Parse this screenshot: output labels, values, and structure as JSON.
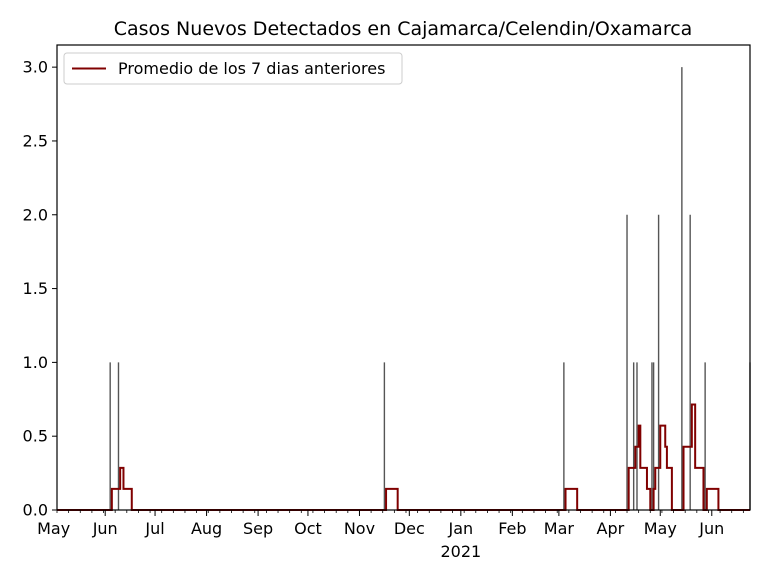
{
  "chart_data": {
    "type": "bar",
    "title": "Casos Nuevos Detectados en Cajamarca/Celendin/Oxamarca",
    "xlabel": "",
    "ylabel": "",
    "x_start": "2020-05-03",
    "x_end": "2021-06-24",
    "ylim": [
      0,
      3.15
    ],
    "yticks": [
      "0.0",
      "0.5",
      "1.0",
      "1.5",
      "2.0",
      "2.5",
      "3.0"
    ],
    "xticks": [
      {
        "date": "2020-05-01",
        "label": "May",
        "sublabel": ""
      },
      {
        "date": "2020-06-01",
        "label": "Jun",
        "sublabel": ""
      },
      {
        "date": "2020-07-01",
        "label": "Jul",
        "sublabel": ""
      },
      {
        "date": "2020-08-01",
        "label": "Aug",
        "sublabel": ""
      },
      {
        "date": "2020-09-01",
        "label": "Sep",
        "sublabel": ""
      },
      {
        "date": "2020-10-01",
        "label": "Oct",
        "sublabel": ""
      },
      {
        "date": "2020-11-01",
        "label": "Nov",
        "sublabel": ""
      },
      {
        "date": "2020-12-01",
        "label": "Dec",
        "sublabel": ""
      },
      {
        "date": "2021-01-01",
        "label": "Jan",
        "sublabel": "2021"
      },
      {
        "date": "2021-02-01",
        "label": "Feb",
        "sublabel": ""
      },
      {
        "date": "2021-03-01",
        "label": "Mar",
        "sublabel": ""
      },
      {
        "date": "2021-04-01",
        "label": "Apr",
        "sublabel": ""
      },
      {
        "date": "2021-05-01",
        "label": "May",
        "sublabel": ""
      },
      {
        "date": "2021-06-01",
        "label": "Jun",
        "sublabel": ""
      }
    ],
    "daily_cases": [
      {
        "date": "2020-06-04",
        "value": 1
      },
      {
        "date": "2020-06-09",
        "value": 1
      },
      {
        "date": "2020-11-16",
        "value": 1
      },
      {
        "date": "2021-03-04",
        "value": 1
      },
      {
        "date": "2021-04-11",
        "value": 2
      },
      {
        "date": "2021-04-15",
        "value": 1
      },
      {
        "date": "2021-04-17",
        "value": 1
      },
      {
        "date": "2021-04-26",
        "value": 1
      },
      {
        "date": "2021-04-27",
        "value": 1
      },
      {
        "date": "2021-04-30",
        "value": 2
      },
      {
        "date": "2021-05-14",
        "value": 3
      },
      {
        "date": "2021-05-19",
        "value": 2
      },
      {
        "date": "2021-05-28",
        "value": 1
      },
      {
        "date": "2021-06-24",
        "value": 1
      }
    ],
    "series": [
      {
        "name": "Promedio de los 7 dias anteriores",
        "color": "#800000",
        "kind": "line",
        "source": "rolling-7-day-mean-of-daily_cases"
      }
    ],
    "bar_color": "#555555",
    "legend": "upper-left",
    "grid": false
  }
}
